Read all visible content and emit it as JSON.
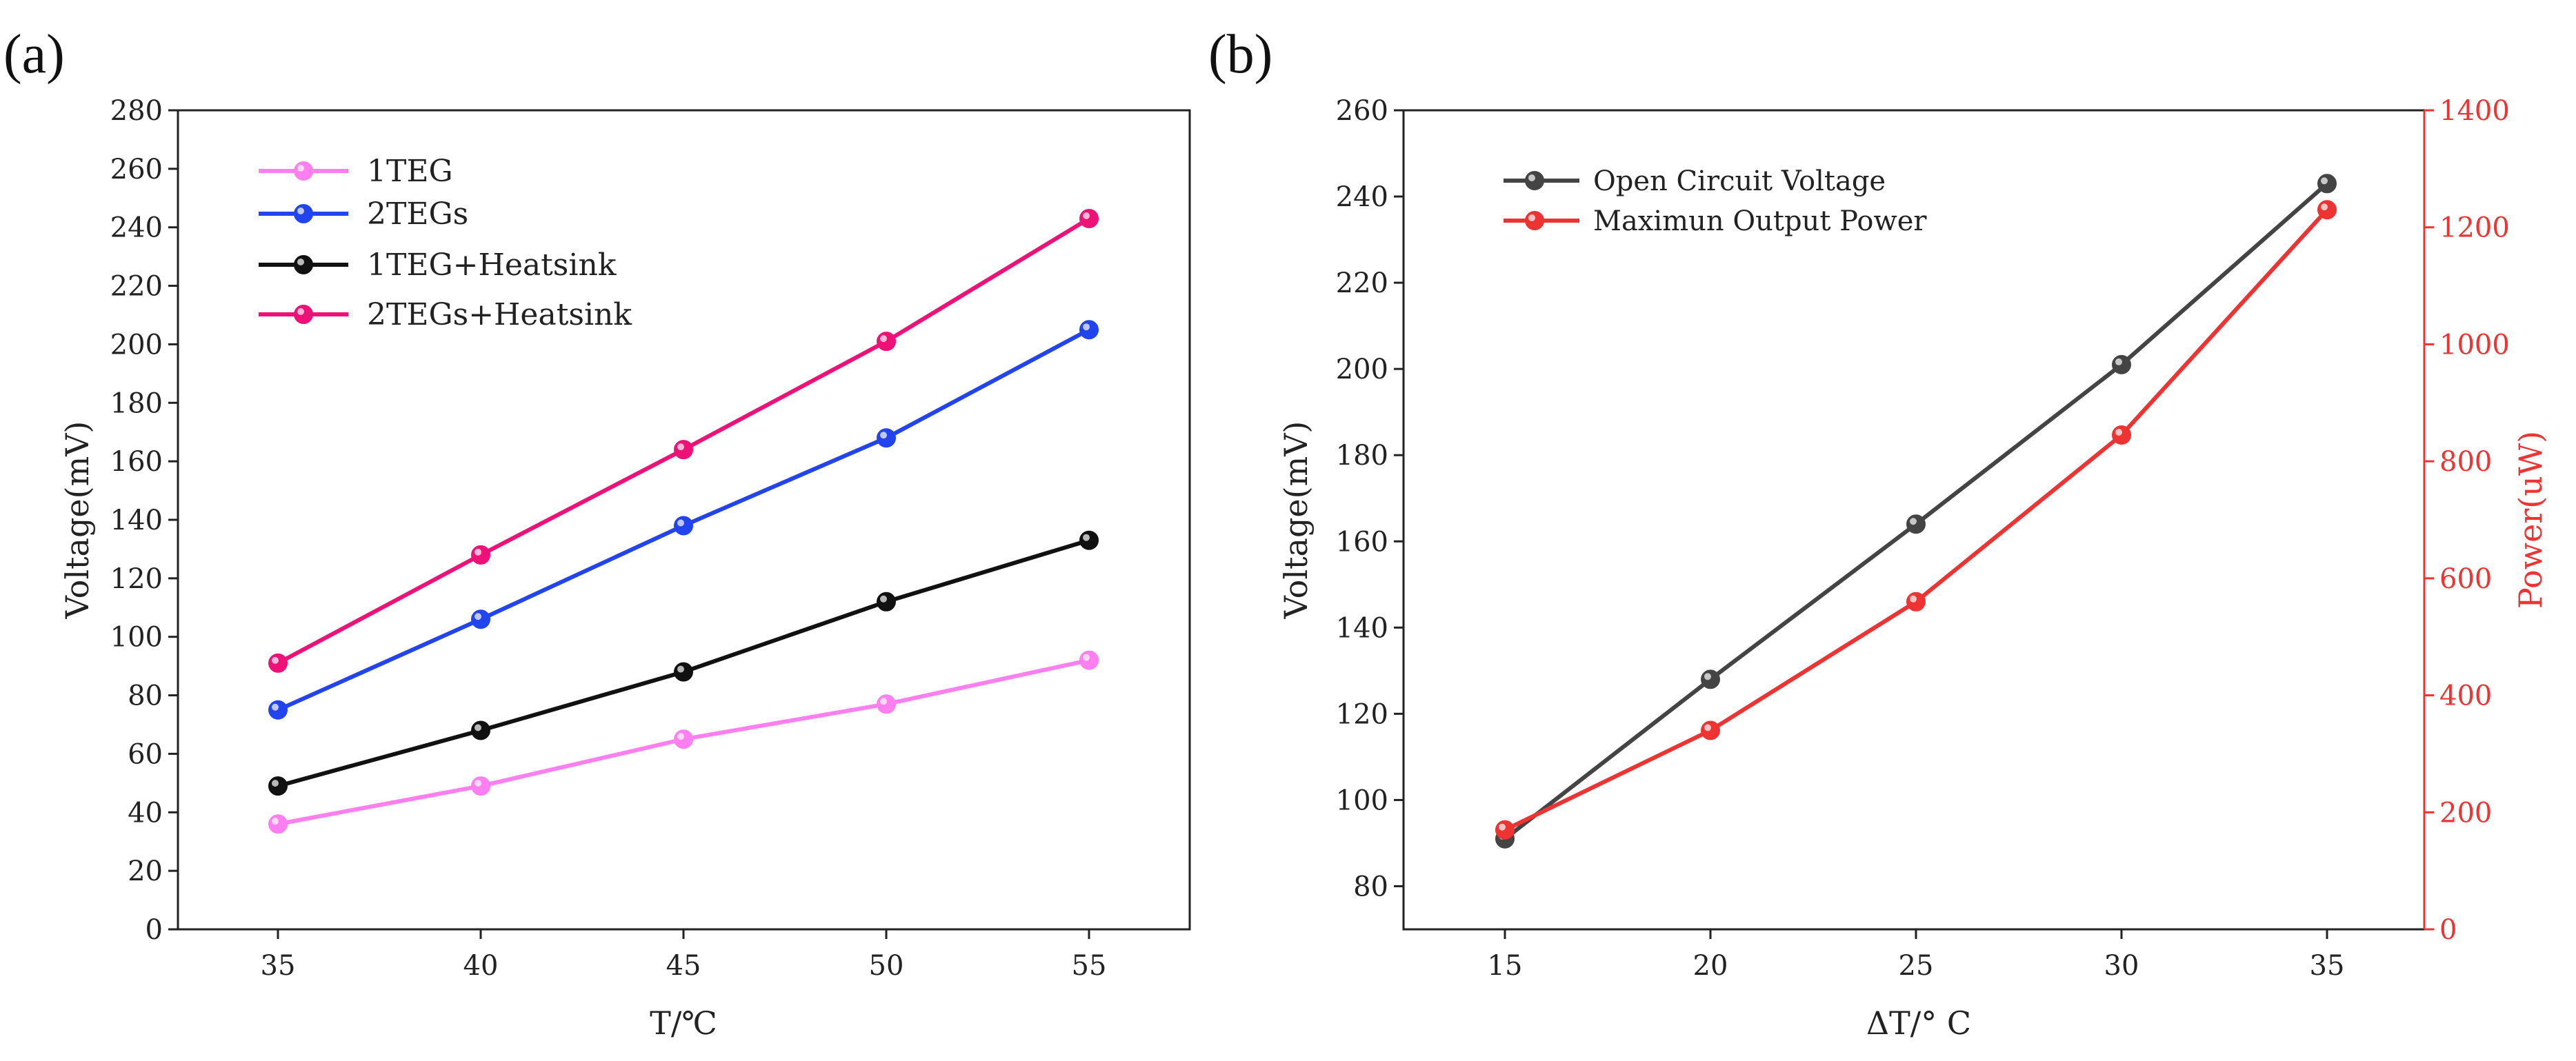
{
  "chart_data": [
    {
      "panel_label": "(a)",
      "type": "line",
      "xlabel": "T/℃",
      "ylabel": "Voltage(mV)",
      "categories": [
        35,
        40,
        45,
        50,
        55
      ],
      "x_ticks": [
        "35",
        "40",
        "45",
        "50",
        "55"
      ],
      "ylim": [
        0,
        280
      ],
      "y_ticks": [
        "0",
        "20",
        "40",
        "60",
        "80",
        "100",
        "120",
        "140",
        "160",
        "180",
        "200",
        "220",
        "240",
        "260",
        "280"
      ],
      "legend_position": "top-left",
      "series": [
        {
          "name": "1TEG",
          "color": "#ff7ef0",
          "values": [
            36,
            49,
            65,
            77,
            92
          ]
        },
        {
          "name": "2TEGs",
          "color": "#2244ee",
          "values": [
            75,
            106,
            138,
            168,
            205
          ]
        },
        {
          "name": "1TEG+Heatsink",
          "color": "#111111",
          "values": [
            49,
            68,
            88,
            112,
            133
          ]
        },
        {
          "name": "2TEGs+Heatsink",
          "color": "#ee1177",
          "values": [
            91,
            128,
            164,
            201,
            243
          ]
        }
      ]
    },
    {
      "panel_label": "(b)",
      "type": "line",
      "xlabel": "ΔT/° C",
      "ylabel": "Voltage(mV)",
      "y2label": "Power(uW)",
      "categories": [
        15,
        20,
        25,
        30,
        35
      ],
      "x_ticks": [
        "15",
        "20",
        "25",
        "30",
        "35"
      ],
      "ylim": [
        70,
        260
      ],
      "y_ticks": [
        "80",
        "100",
        "120",
        "140",
        "160",
        "180",
        "200",
        "220",
        "240",
        "260"
      ],
      "y2lim": [
        0,
        1400
      ],
      "y2_ticks": [
        "0",
        "200",
        "400",
        "600",
        "800",
        "1000",
        "1200",
        "1400"
      ],
      "legend_position": "top-left",
      "series": [
        {
          "name": "Open Circuit Voltage",
          "color": "#444444",
          "axis": "left",
          "values": [
            91,
            128,
            164,
            201,
            243
          ]
        },
        {
          "name": "Maximun Output Power",
          "color": "#ee3333",
          "axis": "right",
          "values": [
            170,
            340,
            560,
            845,
            1230
          ]
        }
      ]
    }
  ]
}
